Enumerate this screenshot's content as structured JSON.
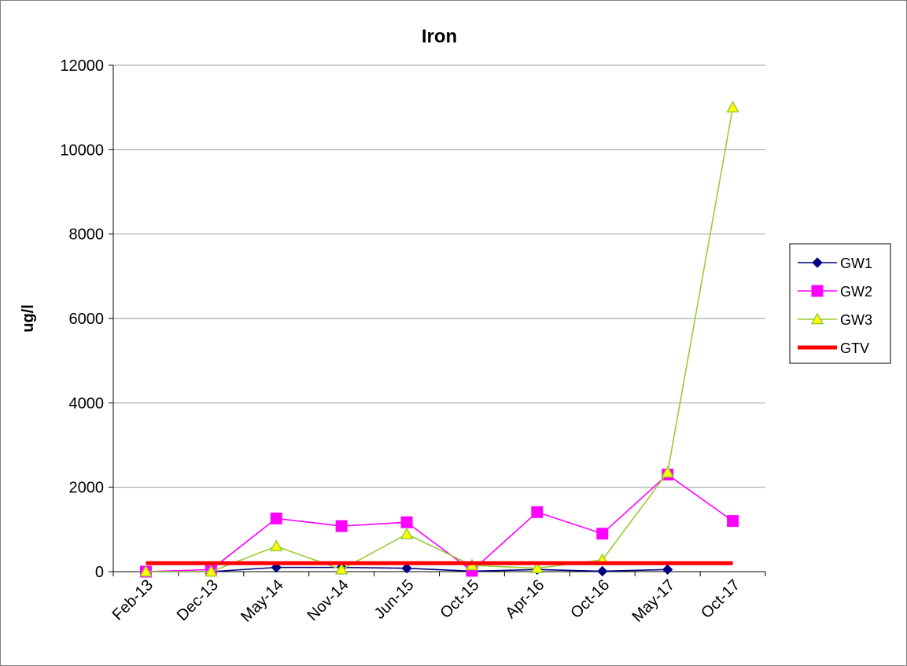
{
  "chart_data": {
    "type": "line",
    "title": "Iron",
    "xlabel": "",
    "ylabel": "ug/l",
    "ylim": [
      0,
      12000
    ],
    "yticks": [
      0,
      2000,
      4000,
      6000,
      8000,
      10000,
      12000
    ],
    "grid": "horizontal",
    "legend_position": "right",
    "categories": [
      "Feb-13",
      "Dec-13",
      "May-14",
      "Nov-14",
      "Jun-15",
      "Oct-15",
      "Apr-16",
      "Oct-16",
      "May-17",
      "Oct-17"
    ],
    "series": [
      {
        "name": "GW1",
        "color": "#000080",
        "marker": "diamond",
        "line_width": "thin",
        "values": [
          0,
          0,
          100,
          100,
          80,
          10,
          50,
          10,
          50,
          null
        ]
      },
      {
        "name": "GW2",
        "color": "#FF00FF",
        "marker": "square",
        "line_width": "thin",
        "values": [
          0,
          50,
          1260,
          1080,
          1170,
          20,
          1410,
          900,
          2300,
          1200
        ]
      },
      {
        "name": "GW3",
        "color": "#99CC33",
        "marker": "triangle",
        "marker_fill": "#FFFF00",
        "line_width": "thin",
        "values": [
          0,
          0,
          600,
          50,
          890,
          150,
          80,
          280,
          2350,
          11000
        ]
      },
      {
        "name": "GTV",
        "color": "#FF0000",
        "marker": "none",
        "line_width": "thick",
        "values": [
          200,
          200,
          200,
          200,
          200,
          200,
          200,
          200,
          200,
          200
        ]
      }
    ]
  }
}
